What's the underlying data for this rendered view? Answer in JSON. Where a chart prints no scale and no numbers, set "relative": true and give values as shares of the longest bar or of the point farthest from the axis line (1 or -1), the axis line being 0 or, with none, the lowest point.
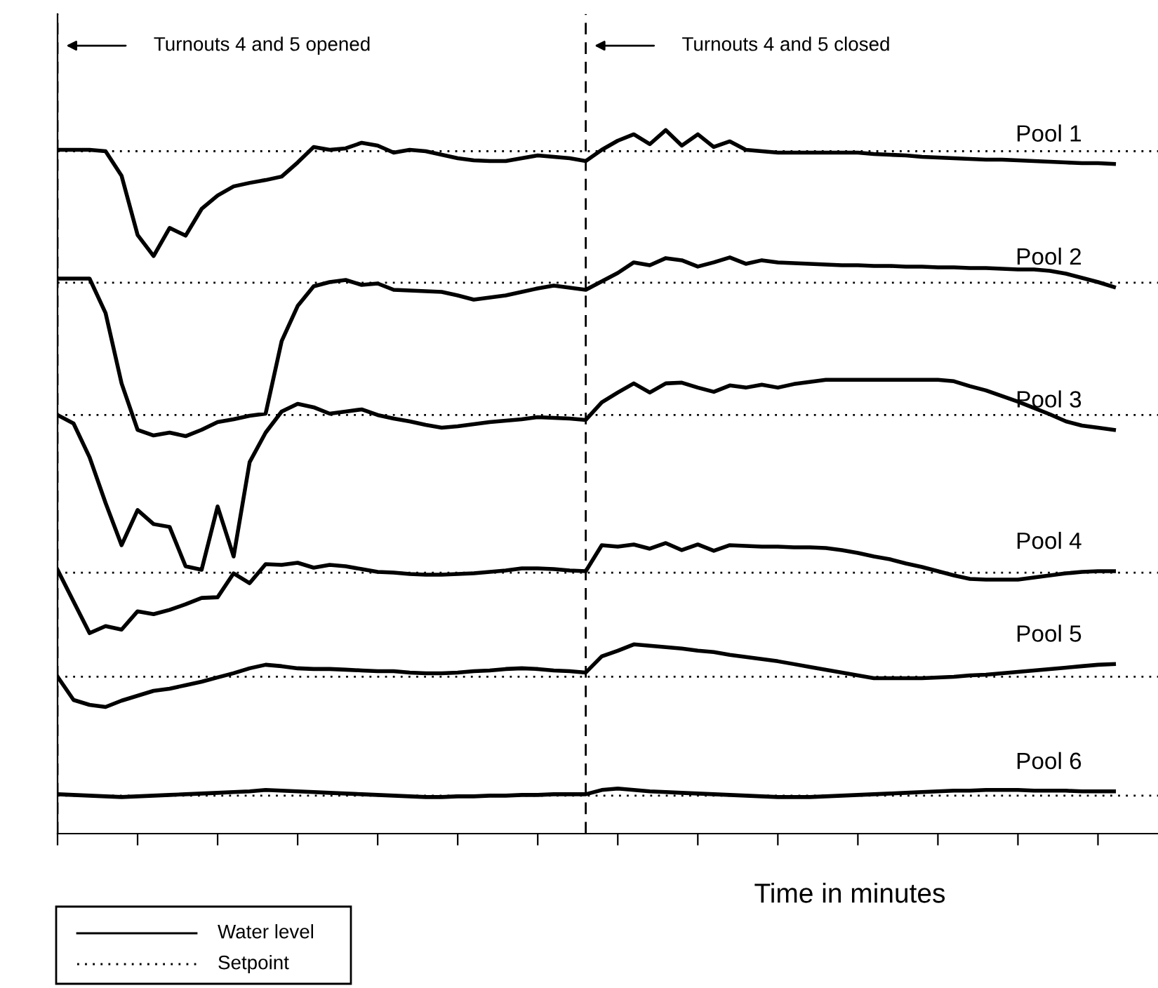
{
  "chart_data": {
    "type": "line",
    "relative": true,
    "xlabel": "Time in minutes",
    "grid": false,
    "marker": "none",
    "line_style": "solid",
    "categories": [
      null,
      null,
      null,
      null,
      null,
      null,
      null,
      null,
      null,
      null,
      null,
      null,
      null,
      null,
      null,
      null,
      null,
      null,
      null,
      null,
      null,
      null,
      null,
      null,
      null,
      null,
      null,
      null,
      null,
      null,
      null,
      null,
      null,
      null,
      null,
      null,
      null,
      null,
      null,
      null,
      null,
      null,
      null,
      null,
      null,
      null,
      null,
      null,
      null,
      null,
      null,
      null,
      null,
      null,
      null,
      null,
      null,
      null,
      null,
      null,
      null,
      null,
      null,
      null,
      null,
      null,
      null
    ],
    "series": [
      {
        "name": "Pool 1",
        "color": "#000000",
        "values": [
          0.972,
          0.972,
          0.972,
          0.97,
          0.935,
          0.851,
          0.821,
          0.861,
          0.85,
          0.888,
          0.907,
          0.92,
          0.925,
          0.929,
          0.934,
          0.954,
          0.976,
          0.972,
          0.974,
          0.982,
          0.978,
          0.968,
          0.972,
          0.97,
          0.965,
          0.96,
          0.957,
          0.956,
          0.956,
          0.96,
          0.964,
          0.962,
          0.96,
          0.956,
          0.972,
          0.985,
          0.994,
          0.98,
          1.0,
          0.978,
          0.994,
          0.976,
          0.984,
          0.972,
          0.97,
          0.968,
          0.968,
          0.968,
          0.968,
          0.968,
          0.968,
          0.966,
          0.965,
          0.964,
          0.962,
          0.961,
          0.96,
          0.959,
          0.958,
          0.958,
          0.957,
          0.956,
          0.955,
          0.954,
          0.953,
          0.953,
          0.952
        ]
      },
      {
        "name": "Pool 2",
        "color": "#000000",
        "values": [
          0.789,
          0.789,
          0.789,
          0.74,
          0.64,
          0.574,
          0.566,
          0.57,
          0.565,
          0.574,
          0.585,
          0.589,
          0.594,
          0.597,
          0.7,
          0.75,
          0.778,
          0.784,
          0.787,
          0.78,
          0.782,
          0.773,
          0.772,
          0.771,
          0.77,
          0.765,
          0.759,
          0.762,
          0.765,
          0.77,
          0.775,
          0.779,
          0.776,
          0.773,
          0.785,
          0.797,
          0.812,
          0.808,
          0.818,
          0.815,
          0.806,
          0.812,
          0.819,
          0.81,
          0.815,
          0.812,
          0.811,
          0.81,
          0.809,
          0.808,
          0.808,
          0.807,
          0.807,
          0.806,
          0.806,
          0.805,
          0.805,
          0.804,
          0.804,
          0.803,
          0.802,
          0.802,
          0.8,
          0.796,
          0.79,
          0.784,
          0.777
        ]
      },
      {
        "name": "Pool 3",
        "color": "#000000",
        "values": [
          0.595,
          0.583,
          0.535,
          0.47,
          0.41,
          0.46,
          0.44,
          0.436,
          0.38,
          0.375,
          0.465,
          0.394,
          0.528,
          0.57,
          0.6,
          0.611,
          0.606,
          0.597,
          0.6,
          0.603,
          0.595,
          0.59,
          0.586,
          0.581,
          0.577,
          0.579,
          0.582,
          0.585,
          0.587,
          0.589,
          0.592,
          0.591,
          0.59,
          0.588,
          0.613,
          0.627,
          0.64,
          0.627,
          0.64,
          0.641,
          0.634,
          0.628,
          0.637,
          0.634,
          0.638,
          0.634,
          0.639,
          0.642,
          0.645,
          0.645,
          0.645,
          0.645,
          0.645,
          0.645,
          0.645,
          0.645,
          0.643,
          0.636,
          0.63,
          0.622,
          0.614,
          0.605,
          0.596,
          0.586,
          0.58,
          0.577,
          0.574
        ]
      },
      {
        "name": "Pool 4",
        "color": "#000000",
        "values": [
          0.375,
          0.33,
          0.285,
          0.295,
          0.29,
          0.316,
          0.312,
          0.318,
          0.326,
          0.335,
          0.336,
          0.37,
          0.356,
          0.383,
          0.382,
          0.385,
          0.378,
          0.382,
          0.38,
          0.376,
          0.372,
          0.371,
          0.369,
          0.368,
          0.368,
          0.369,
          0.37,
          0.372,
          0.374,
          0.377,
          0.377,
          0.376,
          0.374,
          0.373,
          0.41,
          0.408,
          0.411,
          0.405,
          0.413,
          0.403,
          0.411,
          0.402,
          0.41,
          0.409,
          0.408,
          0.408,
          0.407,
          0.407,
          0.406,
          0.403,
          0.399,
          0.394,
          0.39,
          0.384,
          0.379,
          0.373,
          0.367,
          0.362,
          0.361,
          0.361,
          0.361,
          0.364,
          0.367,
          0.37,
          0.372,
          0.373,
          0.373
        ]
      },
      {
        "name": "Pool 5",
        "color": "#000000",
        "values": [
          0.223,
          0.19,
          0.183,
          0.18,
          0.189,
          0.196,
          0.203,
          0.206,
          0.211,
          0.216,
          0.222,
          0.228,
          0.235,
          0.24,
          0.238,
          0.235,
          0.234,
          0.234,
          0.233,
          0.232,
          0.231,
          0.231,
          0.229,
          0.228,
          0.228,
          0.229,
          0.231,
          0.232,
          0.234,
          0.235,
          0.234,
          0.232,
          0.231,
          0.229,
          0.252,
          0.26,
          0.269,
          0.267,
          0.265,
          0.263,
          0.26,
          0.258,
          0.254,
          0.251,
          0.248,
          0.245,
          0.241,
          0.237,
          0.233,
          0.229,
          0.225,
          0.221,
          0.221,
          0.221,
          0.221,
          0.222,
          0.223,
          0.225,
          0.226,
          0.228,
          0.23,
          0.232,
          0.234,
          0.236,
          0.238,
          0.24,
          0.241
        ]
      },
      {
        "name": "Pool 6",
        "color": "#000000",
        "values": [
          0.056,
          0.055,
          0.054,
          0.053,
          0.052,
          0.053,
          0.054,
          0.055,
          0.056,
          0.057,
          0.058,
          0.059,
          0.06,
          0.062,
          0.061,
          0.06,
          0.059,
          0.058,
          0.057,
          0.056,
          0.055,
          0.054,
          0.053,
          0.052,
          0.052,
          0.053,
          0.053,
          0.054,
          0.054,
          0.055,
          0.055,
          0.056,
          0.056,
          0.056,
          0.062,
          0.064,
          0.062,
          0.06,
          0.059,
          0.058,
          0.057,
          0.056,
          0.055,
          0.054,
          0.053,
          0.052,
          0.052,
          0.052,
          0.053,
          0.054,
          0.055,
          0.056,
          0.057,
          0.058,
          0.059,
          0.06,
          0.061,
          0.061,
          0.062,
          0.062,
          0.062,
          0.061,
          0.061,
          0.061,
          0.06,
          0.06,
          0.06
        ]
      }
    ],
    "ref_lines": [
      {
        "axis": "y",
        "value": 0.97,
        "color": "#000000",
        "line_style": "dotted"
      },
      {
        "axis": "y",
        "value": 0.783,
        "color": "#000000",
        "line_style": "dotted"
      },
      {
        "axis": "y",
        "value": 0.595,
        "color": "#000000",
        "line_style": "dotted"
      },
      {
        "axis": "y",
        "value": 0.371,
        "color": "#000000",
        "line_style": "dotted"
      },
      {
        "axis": "y",
        "value": 0.223,
        "color": "#000000",
        "line_style": "dotted"
      },
      {
        "axis": "y",
        "value": 0.054,
        "color": "#000000",
        "line_style": "dotted"
      }
    ],
    "annotations": [
      "Turnouts 4 and 5 opened",
      "Turnouts 4 and 5 closed",
      "Water level",
      "Setpoint"
    ]
  }
}
